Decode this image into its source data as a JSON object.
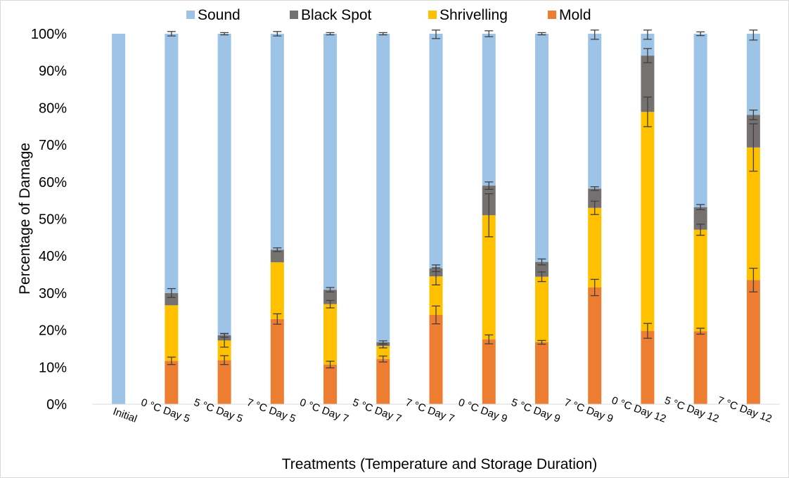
{
  "chart_data": {
    "type": "bar",
    "stacked": true,
    "stack_mode": "percent",
    "xlabel": "Treatments (Temperature and Storage Duration)",
    "ylabel": "Percentage of Damage",
    "ylim": [
      0,
      100
    ],
    "yticks": [
      "0%",
      "10%",
      "20%",
      "30%",
      "40%",
      "50%",
      "60%",
      "70%",
      "80%",
      "90%",
      "100%"
    ],
    "grid": false,
    "legend_position": "top",
    "categories": [
      "Initial",
      "0 °C Day 5",
      "5 °C Day 5",
      "7 °C Day 5",
      "0 °C Day 7",
      "5 °C Day 7",
      "7 °C Day 7",
      "0 °C Day 9",
      "5 °C Day 9",
      "7 °C Day 9",
      "0 °C Day 12",
      "5 °C Day 12",
      "7 °C Day 12"
    ],
    "series": [
      {
        "name": "Mold",
        "color": "#ED7D31",
        "values": [
          0,
          11.7,
          11.9,
          23,
          10.7,
          12.2,
          24.1,
          17.5,
          16.7,
          31.5,
          19.8,
          19.7,
          33.5
        ],
        "error": [
          0,
          1.0,
          1.2,
          1.4,
          0.9,
          0.8,
          2.4,
          1.2,
          0.5,
          2.2,
          2.0,
          0.8,
          3.2
        ]
      },
      {
        "name": "Shrivelling",
        "color": "#FFC000",
        "values": [
          0,
          15,
          5.3,
          15.3,
          16.3,
          3.5,
          10.4,
          33.5,
          17.7,
          21.5,
          59.1,
          27.4,
          35.8
        ],
        "error": [
          0,
          0,
          1.8,
          0,
          1.0,
          0.5,
          2.3,
          5.8,
          1.3,
          1.8,
          4.0,
          1.5,
          6.4
        ]
      },
      {
        "name": "Black Spot",
        "color": "#767171",
        "values": [
          0,
          3.3,
          1.4,
          3.4,
          3.9,
          1.0,
          2.2,
          8.0,
          4.0,
          5.2,
          15.2,
          6.1,
          8.8
        ],
        "error": [
          0,
          1.2,
          0.5,
          0.5,
          0.6,
          0.4,
          0.9,
          1.0,
          0.8,
          0.5,
          1.9,
          0.7,
          1.3
        ]
      },
      {
        "name": "Sound",
        "color": "#9DC3E6",
        "values": [
          100,
          70,
          81.4,
          58.3,
          69.1,
          83.3,
          63.3,
          41.0,
          61.6,
          41.8,
          5.9,
          46.8,
          21.9
        ],
        "error": [
          0,
          0.6,
          0.3,
          0.6,
          0.3,
          0.3,
          1.3,
          0.8,
          0.3,
          1.5,
          1.5,
          0.5,
          1.7
        ]
      }
    ],
    "legend_order": [
      "Sound",
      "Black Spot",
      "Shrivelling",
      "Mold"
    ]
  }
}
